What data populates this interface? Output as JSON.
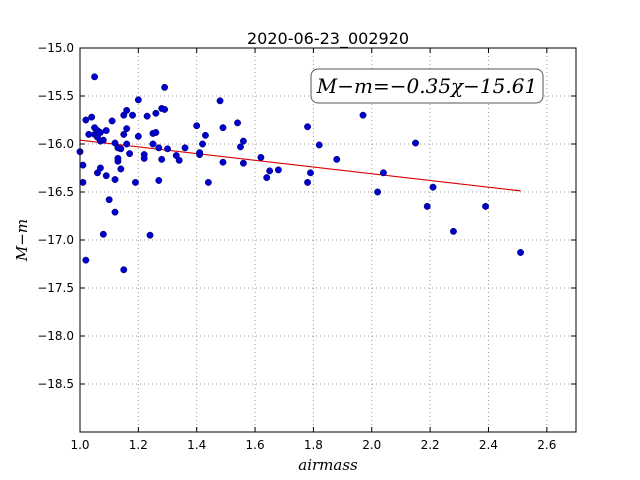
{
  "chart_data": {
    "type": "scatter",
    "title": "2020-06-23_002920",
    "xlabel": "airmass",
    "ylabel": "M−m",
    "xlim": [
      1.0,
      2.7
    ],
    "ylim": [
      -19.0,
      -15.0
    ],
    "y_inverted": true,
    "grid": true,
    "grid_style": "dotted",
    "xticks": [
      "1.0",
      "1.2",
      "1.4",
      "1.6",
      "1.8",
      "2.0",
      "2.2",
      "2.4",
      "2.6"
    ],
    "yticks": [
      "−15.0",
      "−15.5",
      "−16.0",
      "−16.5",
      "−17.0",
      "−17.5",
      "−18.0",
      "−18.5"
    ],
    "annotation": "M−m=−0.35χ−15.61",
    "colors": {
      "points": "#0000cc",
      "fit_line": "#dd0000",
      "grid": "#999999"
    },
    "fit": {
      "slope": -0.35,
      "intercept": -15.61,
      "x_range": [
        1.0,
        2.51
      ]
    },
    "series": [
      {
        "values": [
          [
            1.0,
            -16.08
          ],
          [
            1.01,
            -16.22
          ],
          [
            1.01,
            -16.4
          ],
          [
            1.02,
            -15.75
          ],
          [
            1.02,
            -17.21
          ],
          [
            1.03,
            -15.9
          ],
          [
            1.04,
            -15.72
          ],
          [
            1.05,
            -15.83
          ],
          [
            1.05,
            -15.9
          ],
          [
            1.05,
            -15.3
          ],
          [
            1.06,
            -15.86
          ],
          [
            1.06,
            -15.93
          ],
          [
            1.06,
            -16.3
          ],
          [
            1.07,
            -15.88
          ],
          [
            1.07,
            -15.97
          ],
          [
            1.07,
            -16.25
          ],
          [
            1.08,
            -16.94
          ],
          [
            1.08,
            -15.96
          ],
          [
            1.09,
            -15.86
          ],
          [
            1.09,
            -16.33
          ],
          [
            1.1,
            -16.58
          ],
          [
            1.11,
            -15.76
          ],
          [
            1.12,
            -16.71
          ],
          [
            1.12,
            -16.37
          ],
          [
            1.12,
            -15.99
          ],
          [
            1.13,
            -16.04
          ],
          [
            1.13,
            -16.18
          ],
          [
            1.13,
            -16.15
          ],
          [
            1.14,
            -16.05
          ],
          [
            1.14,
            -16.26
          ],
          [
            1.15,
            -17.31
          ],
          [
            1.15,
            -15.7
          ],
          [
            1.15,
            -15.9
          ],
          [
            1.16,
            -15.65
          ],
          [
            1.16,
            -15.84
          ],
          [
            1.16,
            -16.0
          ],
          [
            1.17,
            -16.1
          ],
          [
            1.18,
            -15.7
          ],
          [
            1.19,
            -16.4
          ],
          [
            1.2,
            -15.54
          ],
          [
            1.2,
            -15.92
          ],
          [
            1.22,
            -16.11
          ],
          [
            1.22,
            -16.15
          ],
          [
            1.23,
            -15.71
          ],
          [
            1.24,
            -16.95
          ],
          [
            1.25,
            -15.89
          ],
          [
            1.25,
            -16.0
          ],
          [
            1.26,
            -15.68
          ],
          [
            1.26,
            -15.88
          ],
          [
            1.27,
            -16.04
          ],
          [
            1.27,
            -16.38
          ],
          [
            1.28,
            -16.16
          ],
          [
            1.28,
            -15.63
          ],
          [
            1.29,
            -15.41
          ],
          [
            1.29,
            -15.64
          ],
          [
            1.3,
            -16.05
          ],
          [
            1.33,
            -16.12
          ],
          [
            1.34,
            -16.17
          ],
          [
            1.36,
            -16.04
          ],
          [
            1.4,
            -15.81
          ],
          [
            1.41,
            -16.11
          ],
          [
            1.41,
            -16.09
          ],
          [
            1.42,
            -16.0
          ],
          [
            1.43,
            -15.91
          ],
          [
            1.44,
            -16.4
          ],
          [
            1.48,
            -15.55
          ],
          [
            1.49,
            -15.83
          ],
          [
            1.49,
            -16.19
          ],
          [
            1.54,
            -15.78
          ],
          [
            1.55,
            -16.03
          ],
          [
            1.56,
            -16.2
          ],
          [
            1.56,
            -15.97
          ],
          [
            1.62,
            -16.14
          ],
          [
            1.64,
            -16.35
          ],
          [
            1.65,
            -16.28
          ],
          [
            1.68,
            -16.27
          ],
          [
            1.78,
            -15.82
          ],
          [
            1.78,
            -16.4
          ],
          [
            1.79,
            -16.3
          ],
          [
            1.82,
            -16.01
          ],
          [
            1.88,
            -16.16
          ],
          [
            1.97,
            -15.7
          ],
          [
            2.02,
            -16.5
          ],
          [
            2.04,
            -16.3
          ],
          [
            2.15,
            -15.99
          ],
          [
            2.19,
            -16.65
          ],
          [
            2.21,
            -16.45
          ],
          [
            2.28,
            -16.91
          ],
          [
            2.39,
            -16.65
          ],
          [
            2.51,
            -17.13
          ]
        ]
      }
    ]
  }
}
